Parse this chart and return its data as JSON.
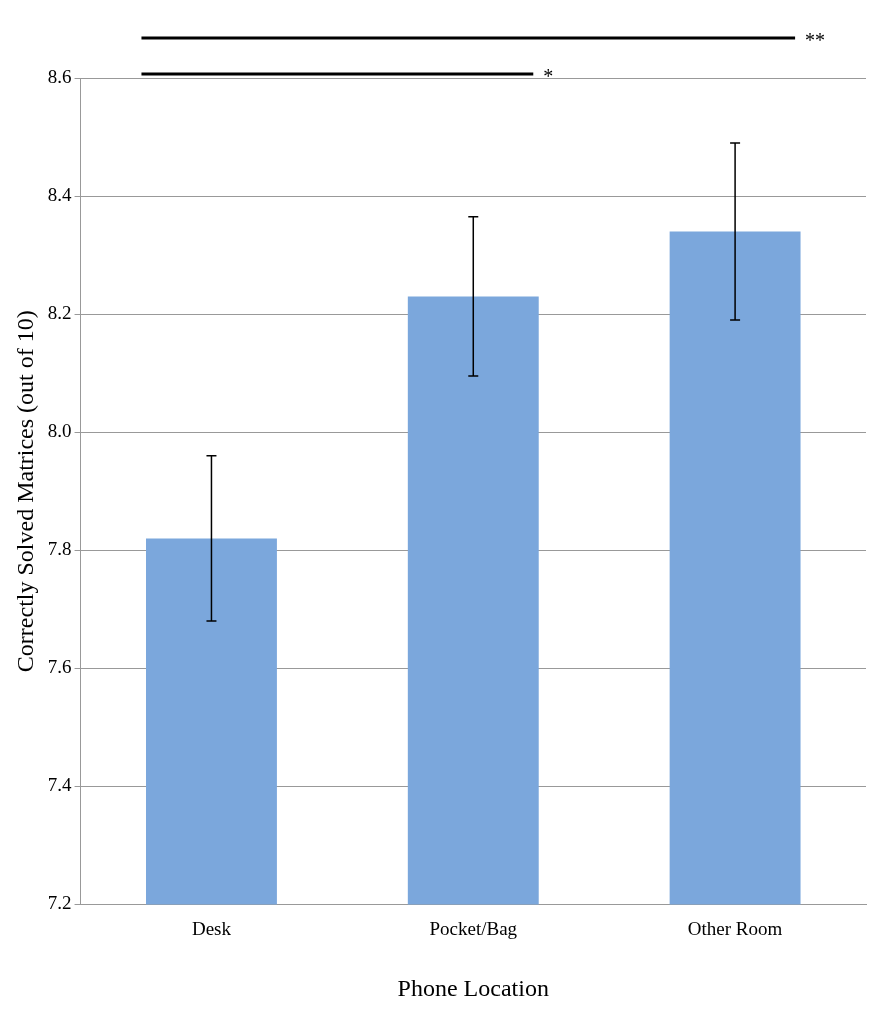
{
  "chart_data": {
    "type": "bar",
    "categories": [
      "Desk",
      "Pocket/Bag",
      "Other Room"
    ],
    "values": [
      7.82,
      8.23,
      8.34
    ],
    "errors": [
      0.14,
      0.135,
      0.15
    ],
    "color": "#7ba7dc",
    "xlabel": "Phone Location",
    "ylabel": "Correctly Solved Matrices (out of 10)",
    "ylim": [
      7.2,
      8.6
    ],
    "yticks": [
      {
        "value": 7.2,
        "label": "7.2"
      },
      {
        "value": 7.4,
        "label": "7.4"
      },
      {
        "value": 7.6,
        "label": "7.6"
      },
      {
        "value": 7.8,
        "label": "7.8"
      },
      {
        "value": 8.0,
        "label": "8.0"
      },
      {
        "value": 8.2,
        "label": "8.2"
      },
      {
        "value": 8.4,
        "label": "8.4"
      },
      {
        "value": 8.6,
        "label": "8.6"
      }
    ],
    "grid": "y",
    "annotations": [
      "**",
      "*"
    ]
  }
}
